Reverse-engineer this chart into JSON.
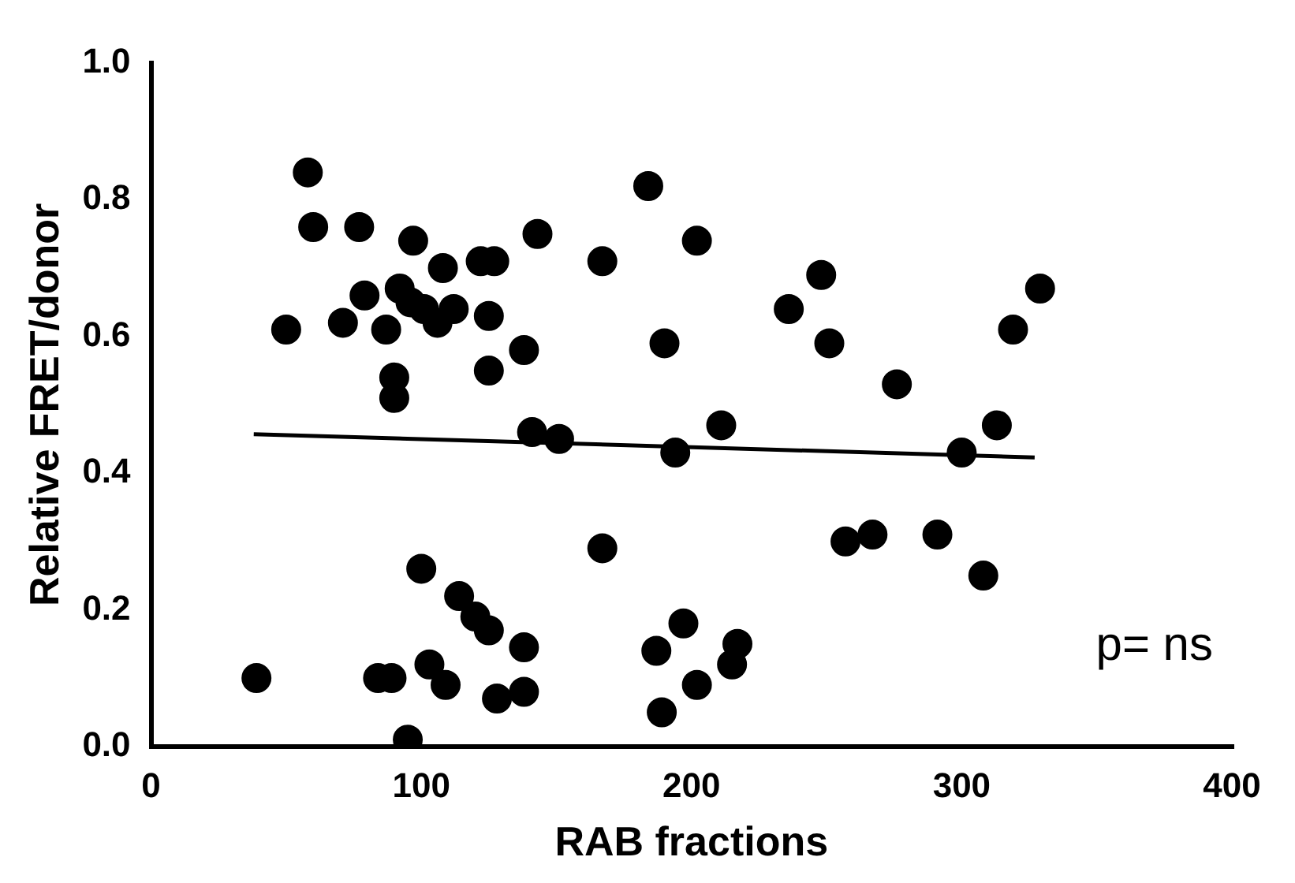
{
  "chart_data": {
    "type": "scatter",
    "xlabel": "RAB fractions",
    "ylabel": "Relative FRET/donor",
    "xlim": [
      0,
      400
    ],
    "xticks": [
      0,
      100,
      200,
      300,
      400
    ],
    "ylim": [
      0,
      1
    ],
    "yticks": [
      {
        "value": 0,
        "label": "0.0"
      },
      {
        "value": 0.2,
        "label": "0.2"
      },
      {
        "value": 0.4,
        "label": "0.4"
      },
      {
        "value": 0.6,
        "label": "0.6"
      },
      {
        "value": 0.8,
        "label": "0.8"
      },
      {
        "value": 1,
        "label": "1.0"
      }
    ],
    "grid": false,
    "legend": false,
    "annotations": [
      "p= ns"
    ],
    "series": [
      {
        "color": "#000000",
        "marker": "circle",
        "x": [
          58,
          60,
          77,
          97,
          143,
          184,
          202,
          108,
          122,
          127,
          167,
          79,
          92,
          96,
          101,
          106,
          112,
          125,
          50,
          71,
          87,
          190,
          138,
          90,
          90,
          125,
          141,
          151,
          194,
          248,
          236,
          251,
          329,
          319,
          276,
          211,
          313,
          300,
          39,
          84,
          89,
          95,
          100,
          103,
          109,
          114,
          120,
          125,
          138,
          128,
          138,
          167,
          187,
          197,
          189,
          202,
          217,
          215,
          257,
          267,
          291,
          308
        ],
        "values": [
          0.84,
          0.76,
          0.76,
          0.74,
          0.75,
          0.82,
          0.74,
          0.7,
          0.71,
          0.71,
          0.71,
          0.66,
          0.67,
          0.65,
          0.64,
          0.62,
          0.64,
          0.63,
          0.61,
          0.62,
          0.61,
          0.59,
          0.58,
          0.54,
          0.51,
          0.55,
          0.46,
          0.45,
          0.43,
          0.69,
          0.64,
          0.59,
          0.67,
          0.61,
          0.53,
          0.47,
          0.47,
          0.43,
          0.1,
          0.1,
          0.1,
          0.01,
          0.26,
          0.12,
          0.09,
          0.22,
          0.19,
          0.17,
          0.145,
          0.07,
          0.08,
          0.29,
          0.14,
          0.18,
          0.05,
          0.09,
          0.15,
          0.12,
          0.3,
          0.31,
          0.31,
          0.25
        ]
      },
      {
        "type": "line",
        "color": "#000000",
        "marker": "none",
        "x": [
          38,
          327
        ],
        "values": [
          0.457,
          0.423
        ]
      }
    ]
  }
}
